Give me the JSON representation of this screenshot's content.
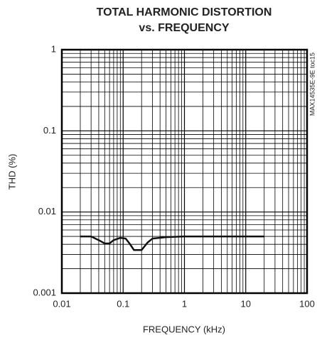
{
  "chart_data": {
    "type": "line",
    "title": [
      "TOTAL HARMONIC DISTORTION",
      "vs. FREQUENCY"
    ],
    "x_label": "FREQUENCY (kHz)",
    "y_label": "THD (%)",
    "annotation": "MAX14535E-9E toc15",
    "xscale": "log",
    "yscale": "log",
    "grid": true,
    "minor_grid": true,
    "xlim": [
      0.01,
      100
    ],
    "ylim": [
      0.001,
      1
    ],
    "xticks": [
      0.01,
      0.1,
      1,
      10,
      100
    ],
    "yticks": [
      0.001,
      0.01,
      0.1,
      1
    ],
    "x": [
      0.02,
      0.03,
      0.04,
      0.05,
      0.06,
      0.07,
      0.09,
      0.11,
      0.13,
      0.15,
      0.2,
      0.25,
      0.3,
      0.5,
      1,
      2,
      5,
      10,
      20
    ],
    "series": [
      {
        "color": "#111111",
        "values": [
          0.005,
          0.005,
          0.0045,
          0.0041,
          0.0041,
          0.0045,
          0.0048,
          0.0047,
          0.004,
          0.0034,
          0.0034,
          0.0042,
          0.0047,
          0.0049,
          0.005,
          0.005,
          0.005,
          0.005,
          0.005
        ]
      }
    ]
  }
}
